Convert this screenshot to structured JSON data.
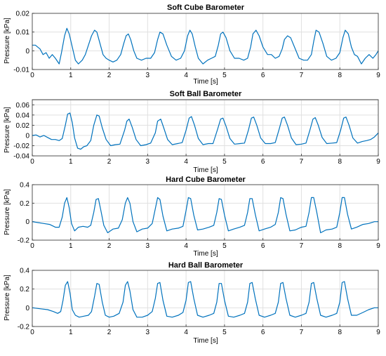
{
  "chart_data": [
    {
      "type": "line",
      "title": "Soft Cube Barometer",
      "xlabel": "Time [s]",
      "ylabel": "Pressure [kPa]",
      "xlim": [
        0,
        9
      ],
      "ylim": [
        -0.01,
        0.02
      ],
      "xticks": [
        0,
        1,
        2,
        3,
        4,
        5,
        6,
        7,
        8,
        9
      ],
      "yticks": [
        -0.01,
        0,
        0.01,
        0.02
      ],
      "ytick_labels": [
        "-0.01",
        "0",
        "0.01",
        "0.02"
      ],
      "grid": true,
      "series": [
        {
          "x": [
            0,
            0.08,
            0.2,
            0.28,
            0.36,
            0.44,
            0.52,
            0.6,
            0.7,
            0.76,
            0.84,
            0.9,
            0.96,
            1.04,
            1.12,
            1.2,
            1.3,
            1.38,
            1.46,
            1.54,
            1.62,
            1.68,
            1.76,
            1.84,
            1.92,
            2.0,
            2.1,
            2.2,
            2.3,
            2.38,
            2.44,
            2.5,
            2.56,
            2.64,
            2.72,
            2.84,
            2.96,
            3.08,
            3.18,
            3.26,
            3.32,
            3.4,
            3.5,
            3.62,
            3.74,
            3.86,
            3.96,
            4.04,
            4.1,
            4.16,
            4.24,
            4.32,
            4.44,
            4.56,
            4.66,
            4.76,
            4.84,
            4.9,
            4.96,
            5.04,
            5.14,
            5.26,
            5.38,
            5.5,
            5.6,
            5.68,
            5.74,
            5.82,
            5.9,
            6.0,
            6.12,
            6.22,
            6.32,
            6.42,
            6.5,
            6.56,
            6.64,
            6.72,
            6.82,
            6.94,
            7.06,
            7.16,
            7.26,
            7.32,
            7.38,
            7.46,
            7.56,
            7.66,
            7.78,
            7.9,
            8.0,
            8.08,
            8.14,
            8.22,
            8.3,
            8.38,
            8.46,
            8.56,
            8.66,
            8.76,
            8.86,
            8.94,
            9.0
          ],
          "y": [
            0.003,
            0.003,
            0.001,
            -0.002,
            -0.001,
            -0.004,
            -0.002,
            -0.004,
            -0.007,
            -0.001,
            0.008,
            0.012,
            0.009,
            0.002,
            -0.005,
            -0.007,
            -0.005,
            -0.002,
            0.003,
            0.008,
            0.011,
            0.01,
            0.004,
            -0.002,
            -0.004,
            -0.005,
            -0.006,
            -0.005,
            -0.002,
            0.004,
            0.008,
            0.009,
            0.006,
            0.0,
            -0.004,
            -0.005,
            -0.004,
            -0.004,
            -0.001,
            0.006,
            0.01,
            0.009,
            0.003,
            -0.003,
            -0.005,
            -0.004,
            0.0,
            0.008,
            0.011,
            0.009,
            0.002,
            -0.004,
            -0.007,
            -0.005,
            -0.004,
            -0.003,
            0.003,
            0.009,
            0.01,
            0.007,
            0.0,
            -0.004,
            -0.004,
            -0.005,
            -0.004,
            0.002,
            0.009,
            0.011,
            0.008,
            0.002,
            -0.002,
            -0.002,
            -0.004,
            -0.003,
            0.001,
            0.006,
            0.008,
            0.007,
            0.002,
            -0.004,
            -0.005,
            -0.005,
            -0.002,
            0.005,
            0.011,
            0.01,
            0.004,
            -0.003,
            -0.005,
            -0.004,
            -0.001,
            0.007,
            0.011,
            0.009,
            0.002,
            -0.002,
            -0.003,
            -0.007,
            -0.004,
            -0.002,
            -0.004,
            -0.002,
            0.0
          ]
        }
      ]
    },
    {
      "type": "line",
      "title": "Soft Ball Barometer",
      "xlabel": "Time [s]",
      "ylabel": "Pressure [kPa]",
      "xlim": [
        0,
        9
      ],
      "ylim": [
        -0.04,
        0.07
      ],
      "xticks": [
        0,
        1,
        2,
        3,
        4,
        5,
        6,
        7,
        8,
        9
      ],
      "yticks": [
        -0.04,
        -0.02,
        0,
        0.02,
        0.04,
        0.06
      ],
      "ytick_labels": [
        "-0.04",
        "-0.02",
        "0",
        "0.02",
        "0.04",
        "0.06"
      ],
      "grid": true,
      "series": [
        {
          "x": [
            0,
            0.1,
            0.2,
            0.3,
            0.4,
            0.5,
            0.6,
            0.7,
            0.78,
            0.86,
            0.92,
            0.98,
            1.04,
            1.1,
            1.18,
            1.26,
            1.34,
            1.42,
            1.52,
            1.6,
            1.68,
            1.74,
            1.82,
            1.92,
            2.04,
            2.16,
            2.28,
            2.4,
            2.46,
            2.52,
            2.6,
            2.7,
            2.82,
            2.96,
            3.08,
            3.2,
            3.26,
            3.34,
            3.42,
            3.52,
            3.64,
            3.78,
            3.9,
            4.0,
            4.08,
            4.14,
            4.22,
            4.32,
            4.44,
            4.58,
            4.7,
            4.82,
            4.9,
            4.96,
            5.04,
            5.14,
            5.26,
            5.4,
            5.52,
            5.62,
            5.7,
            5.76,
            5.84,
            5.94,
            6.06,
            6.2,
            6.32,
            6.42,
            6.5,
            6.56,
            6.64,
            6.74,
            6.86,
            7.0,
            7.12,
            7.22,
            7.3,
            7.36,
            7.44,
            7.54,
            7.66,
            7.8,
            7.92,
            8.02,
            8.1,
            8.16,
            8.24,
            8.34,
            8.46,
            8.58,
            8.7,
            8.8,
            8.9,
            9.0
          ],
          "y": [
            0.0,
            0.001,
            -0.003,
            0.0,
            -0.004,
            -0.008,
            -0.008,
            -0.01,
            -0.006,
            0.02,
            0.042,
            0.044,
            0.025,
            -0.005,
            -0.025,
            -0.027,
            -0.022,
            -0.02,
            -0.01,
            0.02,
            0.04,
            0.038,
            0.015,
            -0.008,
            -0.02,
            -0.018,
            -0.017,
            0.01,
            0.028,
            0.032,
            0.016,
            -0.008,
            -0.02,
            -0.018,
            -0.015,
            0.005,
            0.028,
            0.032,
            0.015,
            -0.008,
            -0.018,
            -0.016,
            -0.014,
            0.01,
            0.034,
            0.037,
            0.02,
            -0.006,
            -0.018,
            -0.016,
            -0.016,
            0.012,
            0.032,
            0.034,
            0.018,
            -0.006,
            -0.017,
            -0.016,
            -0.015,
            0.01,
            0.034,
            0.036,
            0.02,
            -0.005,
            -0.016,
            -0.016,
            -0.014,
            0.012,
            0.034,
            0.036,
            0.02,
            -0.005,
            -0.018,
            -0.017,
            -0.015,
            0.01,
            0.032,
            0.035,
            0.02,
            -0.004,
            -0.016,
            -0.015,
            -0.014,
            0.01,
            0.034,
            0.036,
            0.02,
            -0.005,
            -0.015,
            -0.012,
            -0.01,
            -0.008,
            -0.003,
            0.005
          ]
        }
      ]
    },
    {
      "type": "line",
      "title": "Hard Cube Barometer",
      "xlabel": "Time [s]",
      "ylabel": "Pressure [kPa]",
      "xlim": [
        0,
        9
      ],
      "ylim": [
        -0.2,
        0.4
      ],
      "xticks": [
        0,
        1,
        2,
        3,
        4,
        5,
        6,
        7,
        8,
        9
      ],
      "yticks": [
        -0.2,
        0,
        0.2,
        0.4
      ],
      "ytick_labels": [
        "-0.2",
        "0",
        "0.2",
        "0.4"
      ],
      "grid": true,
      "series": [
        {
          "x": [
            0,
            0.15,
            0.3,
            0.45,
            0.6,
            0.7,
            0.78,
            0.84,
            0.9,
            0.96,
            1.02,
            1.1,
            1.2,
            1.32,
            1.44,
            1.52,
            1.6,
            1.66,
            1.72,
            1.78,
            1.86,
            1.96,
            2.1,
            2.24,
            2.34,
            2.42,
            2.48,
            2.54,
            2.62,
            2.72,
            2.86,
            3.0,
            3.12,
            3.2,
            3.26,
            3.32,
            3.4,
            3.5,
            3.64,
            3.8,
            3.92,
            4.0,
            4.06,
            4.12,
            4.2,
            4.3,
            4.44,
            4.6,
            4.72,
            4.8,
            4.86,
            4.92,
            5.0,
            5.1,
            5.24,
            5.4,
            5.52,
            5.6,
            5.66,
            5.72,
            5.8,
            5.9,
            6.04,
            6.2,
            6.32,
            6.4,
            6.46,
            6.52,
            6.6,
            6.7,
            6.84,
            7.0,
            7.12,
            7.2,
            7.26,
            7.32,
            7.4,
            7.5,
            7.64,
            7.8,
            7.92,
            8.0,
            8.06,
            8.12,
            8.2,
            8.3,
            8.44,
            8.6,
            8.75,
            8.9,
            9.0
          ],
          "y": [
            0.0,
            -0.01,
            -0.02,
            -0.03,
            -0.06,
            -0.06,
            0.05,
            0.2,
            0.26,
            0.15,
            -0.02,
            -0.1,
            -0.06,
            -0.05,
            -0.06,
            -0.04,
            0.1,
            0.24,
            0.25,
            0.13,
            -0.04,
            -0.12,
            -0.08,
            -0.07,
            0.02,
            0.2,
            0.26,
            0.2,
            0.0,
            -0.11,
            -0.08,
            -0.07,
            -0.02,
            0.14,
            0.26,
            0.24,
            0.06,
            -0.1,
            -0.08,
            -0.07,
            -0.05,
            0.12,
            0.26,
            0.25,
            0.07,
            -0.09,
            -0.08,
            -0.06,
            -0.04,
            0.1,
            0.25,
            0.24,
            0.07,
            -0.1,
            -0.08,
            -0.06,
            -0.04,
            0.1,
            0.25,
            0.25,
            0.08,
            -0.1,
            -0.08,
            -0.06,
            -0.03,
            0.1,
            0.26,
            0.25,
            0.08,
            -0.1,
            -0.09,
            -0.06,
            -0.05,
            0.1,
            0.26,
            0.26,
            0.1,
            -0.12,
            -0.09,
            -0.08,
            -0.06,
            0.1,
            0.26,
            0.26,
            0.08,
            -0.08,
            -0.06,
            -0.03,
            -0.02,
            0.0,
            0.0
          ]
        }
      ]
    },
    {
      "type": "line",
      "title": "Hard Ball Barometer",
      "xlabel": "Time [s]",
      "ylabel": "Pressure [kPa]",
      "xlim": [
        0,
        9
      ],
      "ylim": [
        -0.2,
        0.4
      ],
      "xticks": [
        0,
        1,
        2,
        3,
        4,
        5,
        6,
        7,
        8,
        9
      ],
      "yticks": [
        -0.2,
        0,
        0.2,
        0.4
      ],
      "ytick_labels": [
        "-0.2",
        "0",
        "0.2",
        "0.4"
      ],
      "grid": true,
      "series": [
        {
          "x": [
            0,
            0.2,
            0.4,
            0.55,
            0.66,
            0.74,
            0.8,
            0.86,
            0.92,
            0.98,
            1.04,
            1.12,
            1.22,
            1.34,
            1.46,
            1.54,
            1.62,
            1.68,
            1.74,
            1.82,
            1.9,
            2.0,
            2.12,
            2.26,
            2.36,
            2.42,
            2.48,
            2.54,
            2.62,
            2.72,
            2.86,
            3.0,
            3.12,
            3.2,
            3.26,
            3.32,
            3.4,
            3.5,
            3.64,
            3.8,
            3.92,
            4.0,
            4.06,
            4.12,
            4.2,
            4.3,
            4.44,
            4.6,
            4.72,
            4.8,
            4.86,
            4.92,
            5.0,
            5.1,
            5.24,
            5.4,
            5.52,
            5.6,
            5.66,
            5.72,
            5.8,
            5.9,
            6.04,
            6.2,
            6.32,
            6.4,
            6.46,
            6.52,
            6.6,
            6.7,
            6.84,
            7.0,
            7.12,
            7.2,
            7.26,
            7.32,
            7.4,
            7.5,
            7.64,
            7.8,
            7.92,
            8.0,
            8.06,
            8.12,
            8.2,
            8.3,
            8.44,
            8.6,
            8.75,
            8.9,
            9.0
          ],
          "y": [
            0.0,
            -0.01,
            -0.02,
            -0.04,
            -0.06,
            -0.04,
            0.08,
            0.24,
            0.28,
            0.16,
            -0.02,
            -0.08,
            -0.1,
            -0.09,
            -0.08,
            -0.04,
            0.12,
            0.26,
            0.25,
            0.06,
            -0.08,
            -0.1,
            -0.09,
            -0.06,
            0.06,
            0.24,
            0.28,
            0.18,
            -0.02,
            -0.1,
            -0.1,
            -0.08,
            -0.04,
            0.1,
            0.26,
            0.27,
            0.08,
            -0.09,
            -0.1,
            -0.08,
            -0.05,
            0.08,
            0.27,
            0.28,
            0.1,
            -0.08,
            -0.1,
            -0.08,
            -0.06,
            0.06,
            0.26,
            0.26,
            0.08,
            -0.09,
            -0.1,
            -0.08,
            -0.06,
            0.06,
            0.26,
            0.27,
            0.1,
            -0.08,
            -0.1,
            -0.08,
            -0.06,
            0.06,
            0.26,
            0.27,
            0.1,
            -0.08,
            -0.1,
            -0.08,
            -0.06,
            0.06,
            0.26,
            0.27,
            0.1,
            -0.08,
            -0.1,
            -0.08,
            -0.06,
            0.06,
            0.27,
            0.28,
            0.1,
            -0.08,
            -0.08,
            -0.05,
            -0.02,
            0.0,
            0.0
          ]
        }
      ]
    }
  ]
}
